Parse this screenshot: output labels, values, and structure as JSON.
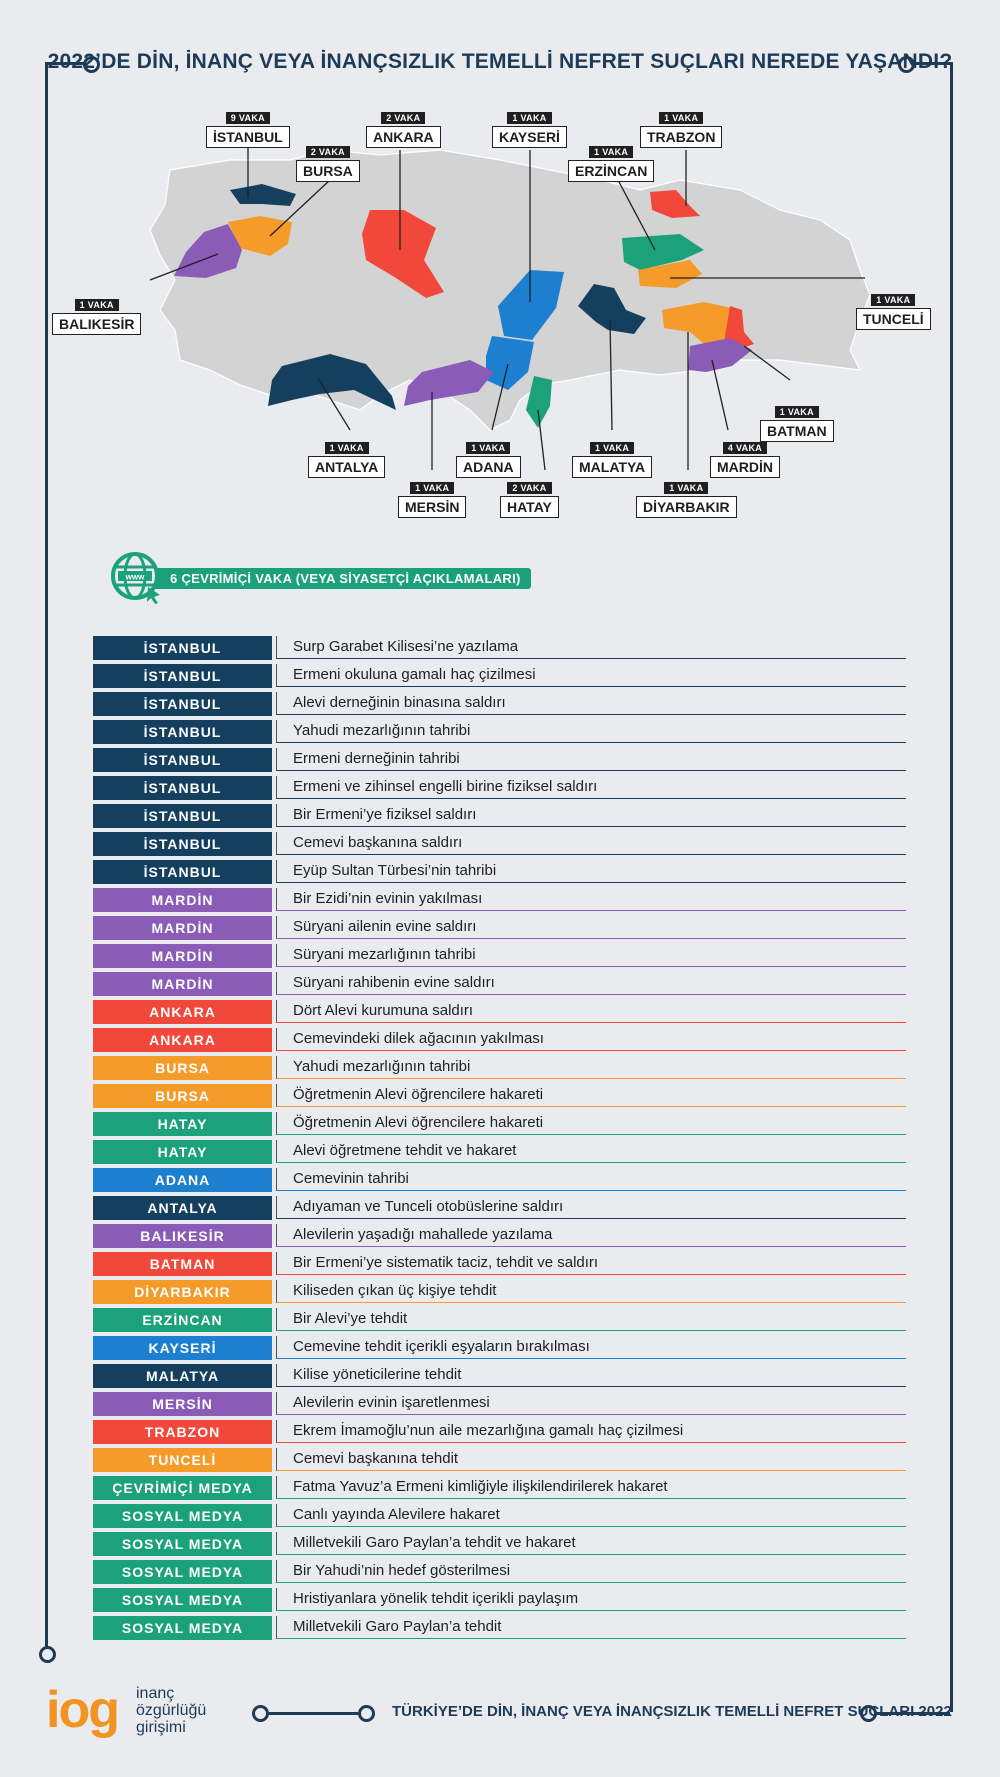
{
  "title": "2022’DE DİN, İNANÇ VEYA İNANÇSIZLIK TEMELLİ NEFRET SUÇLARI NEREDE YAŞANDI?",
  "colors": {
    "navy": "#153f5f",
    "purple": "#8a5cb8",
    "red": "#f2473b",
    "orange": "#f59b2a",
    "green": "#1ba27b",
    "blue": "#1d7fd0",
    "map_gray": "#d3d3d3",
    "frame": "#1d3a57"
  },
  "map_labels": [
    {
      "count": "9 VAKA",
      "name": "İSTANBUL"
    },
    {
      "count": "2 VAKA",
      "name": "ANKARA"
    },
    {
      "count": "2 VAKA",
      "name": "BURSA"
    },
    {
      "count": "1 VAKA",
      "name": "KAYSERİ"
    },
    {
      "count": "1 VAKA",
      "name": "ERZİNCAN"
    },
    {
      "count": "1 VAKA",
      "name": "TRABZON"
    },
    {
      "count": "1 VAKA",
      "name": "BALIKESİR"
    },
    {
      "count": "1 VAKA",
      "name": "TUNCELİ"
    },
    {
      "count": "1 VAKA",
      "name": "BATMAN"
    },
    {
      "count": "1 VAKA",
      "name": "ANTALYA"
    },
    {
      "count": "1 VAKA",
      "name": "ADANA"
    },
    {
      "count": "1 VAKA",
      "name": "MALATYA"
    },
    {
      "count": "4 VAKA",
      "name": "MARDİN"
    },
    {
      "count": "1 VAKA",
      "name": "MERSİN"
    },
    {
      "count": "2 VAKA",
      "name": "HATAY"
    },
    {
      "count": "1 VAKA",
      "name": "DİYARBAKIR"
    }
  ],
  "online": {
    "icon_text": "www",
    "label": "6 ÇEVRİMİÇİ VAKA (VEYA SİYASETÇİ AÇIKLAMALARI)"
  },
  "rows": [
    {
      "city": "İSTANBUL",
      "desc": "Surp Garabet Kilisesi’ne yazılama",
      "color": "#153f5f"
    },
    {
      "city": "İSTANBUL",
      "desc": "Ermeni okuluna gamalı haç çizilmesi",
      "color": "#153f5f"
    },
    {
      "city": "İSTANBUL",
      "desc": "Alevi derneğinin binasına saldırı",
      "color": "#153f5f"
    },
    {
      "city": "İSTANBUL",
      "desc": "Yahudi mezarlığının tahribi",
      "color": "#153f5f"
    },
    {
      "city": "İSTANBUL",
      "desc": "Ermeni derneğinin tahribi",
      "color": "#153f5f"
    },
    {
      "city": "İSTANBUL",
      "desc": "Ermeni ve zihinsel engelli birine fiziksel saldırı",
      "color": "#153f5f"
    },
    {
      "city": "İSTANBUL",
      "desc": "Bir Ermeni’ye fiziksel saldırı",
      "color": "#153f5f"
    },
    {
      "city": "İSTANBUL",
      "desc": "Cemevi başkanına saldırı",
      "color": "#153f5f"
    },
    {
      "city": "İSTANBUL",
      "desc": "Eyüp Sultan Türbesi’nin tahribi",
      "color": "#153f5f"
    },
    {
      "city": "MARDİN",
      "desc": "Bir Ezidi’nin evinin yakılması",
      "color": "#8a5cb8"
    },
    {
      "city": "MARDİN",
      "desc": "Süryani ailenin evine saldırı",
      "color": "#8a5cb8"
    },
    {
      "city": "MARDİN",
      "desc": "Süryani mezarlığının tahribi",
      "color": "#8a5cb8"
    },
    {
      "city": "MARDİN",
      "desc": "Süryani rahibenin evine saldırı",
      "color": "#8a5cb8"
    },
    {
      "city": "ANKARA",
      "desc": "Dört Alevi kurumuna saldırı",
      "color": "#f2473b"
    },
    {
      "city": "ANKARA",
      "desc": "Cemevindeki dilek ağacının yakılması",
      "color": "#f2473b"
    },
    {
      "city": "BURSA",
      "desc": "Yahudi mezarlığının tahribi",
      "color": "#f59b2a"
    },
    {
      "city": "BURSA",
      "desc": "Öğretmenin Alevi öğrencilere hakareti",
      "color": "#f59b2a"
    },
    {
      "city": "HATAY",
      "desc": "Öğretmenin Alevi öğrencilere hakareti",
      "color": "#1ba27b"
    },
    {
      "city": "HATAY",
      "desc": "Alevi öğretmene tehdit ve hakaret",
      "color": "#1ba27b"
    },
    {
      "city": "ADANA",
      "desc": "Cemevinin tahribi",
      "color": "#1d7fd0"
    },
    {
      "city": "ANTALYA",
      "desc": "Adıyaman ve Tunceli otobüslerine saldırı",
      "color": "#153f5f"
    },
    {
      "city": "BALIKESİR",
      "desc": "Alevilerin yaşadığı mahallede yazılama",
      "color": "#8a5cb8"
    },
    {
      "city": "BATMAN",
      "desc": "Bir Ermeni’ye sistematik taciz, tehdit ve saldırı",
      "color": "#f2473b"
    },
    {
      "city": "DİYARBAKIR",
      "desc": "Kiliseden çıkan üç kişiye tehdit",
      "color": "#f59b2a"
    },
    {
      "city": "ERZİNCAN",
      "desc": "Bir Alevi’ye tehdit",
      "color": "#1ba27b"
    },
    {
      "city": "KAYSERİ",
      "desc": "Cemevine tehdit içerikli eşyaların bırakılması",
      "color": "#1d7fd0"
    },
    {
      "city": "MALATYA",
      "desc": "Kilise yöneticilerine tehdit",
      "color": "#153f5f"
    },
    {
      "city": "MERSİN",
      "desc": "Alevilerin evinin işaretlenmesi",
      "color": "#8a5cb8"
    },
    {
      "city": "TRABZON",
      "desc": "Ekrem İmamoğlu’nun aile mezarlığına gamalı haç çizilmesi",
      "color": "#f2473b"
    },
    {
      "city": "TUNCELİ",
      "desc": "Cemevi başkanına tehdit",
      "color": "#f59b2a"
    },
    {
      "city": "ÇEVRİMİÇİ MEDYA",
      "desc": "Fatma Yavuz’a Ermeni kimliğiyle ilişkilendirilerek hakaret",
      "color": "#1ba27b"
    },
    {
      "city": "SOSYAL MEDYA",
      "desc": "Canlı yayında Alevilere hakaret",
      "color": "#1ba27b"
    },
    {
      "city": "SOSYAL MEDYA",
      "desc": "Milletvekili Garo Paylan’a tehdit ve hakaret",
      "color": "#1ba27b"
    },
    {
      "city": "SOSYAL MEDYA",
      "desc": "Bir Yahudi’nin hedef gösterilmesi",
      "color": "#1ba27b"
    },
    {
      "city": "SOSYAL MEDYA",
      "desc": "Hristiyanlara yönelik tehdit içerikli paylaşım",
      "color": "#1ba27b"
    },
    {
      "city": "SOSYAL MEDYA",
      "desc": "Milletvekili Garo Paylan’a tehdit",
      "color": "#1ba27b"
    }
  ],
  "logo": {
    "mark": "iog",
    "line1": "inanç",
    "line2": "özgürlüğü",
    "line3": "girişimi"
  },
  "footer": "TÜRKİYE’DE DİN, İNANÇ VEYA İNANÇSIZLIK TEMELLİ NEFRET SUÇLARI 2022"
}
